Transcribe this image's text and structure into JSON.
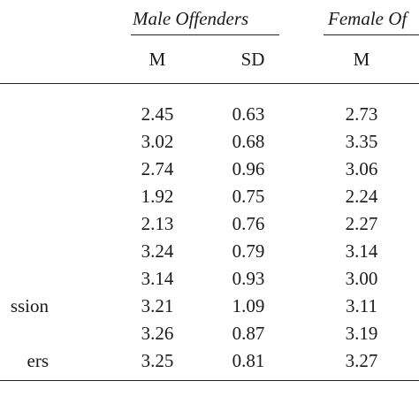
{
  "table": {
    "groups": [
      "Male Offenders",
      "Female Of"
    ],
    "columns": [
      "M",
      "SD",
      "M"
    ],
    "rows": [
      {
        "label": "",
        "values": [
          "2.45",
          "0.63",
          "2.73"
        ]
      },
      {
        "label": "",
        "values": [
          "3.02",
          "0.68",
          "3.35"
        ]
      },
      {
        "label": "",
        "values": [
          "2.74",
          "0.96",
          "3.06"
        ]
      },
      {
        "label": "",
        "values": [
          "1.92",
          "0.75",
          "2.24"
        ]
      },
      {
        "label": "",
        "values": [
          "2.13",
          "0.76",
          "2.27"
        ]
      },
      {
        "label": "",
        "values": [
          "3.24",
          "0.79",
          "3.14"
        ]
      },
      {
        "label": "",
        "values": [
          "3.14",
          "0.93",
          "3.00"
        ]
      },
      {
        "label": "ssion",
        "values": [
          "3.21",
          "1.09",
          "3.11"
        ]
      },
      {
        "label": "",
        "values": [
          "3.26",
          "0.87",
          "3.19"
        ]
      },
      {
        "label": "ers",
        "values": [
          "3.25",
          "0.81",
          "3.27"
        ]
      }
    ]
  }
}
